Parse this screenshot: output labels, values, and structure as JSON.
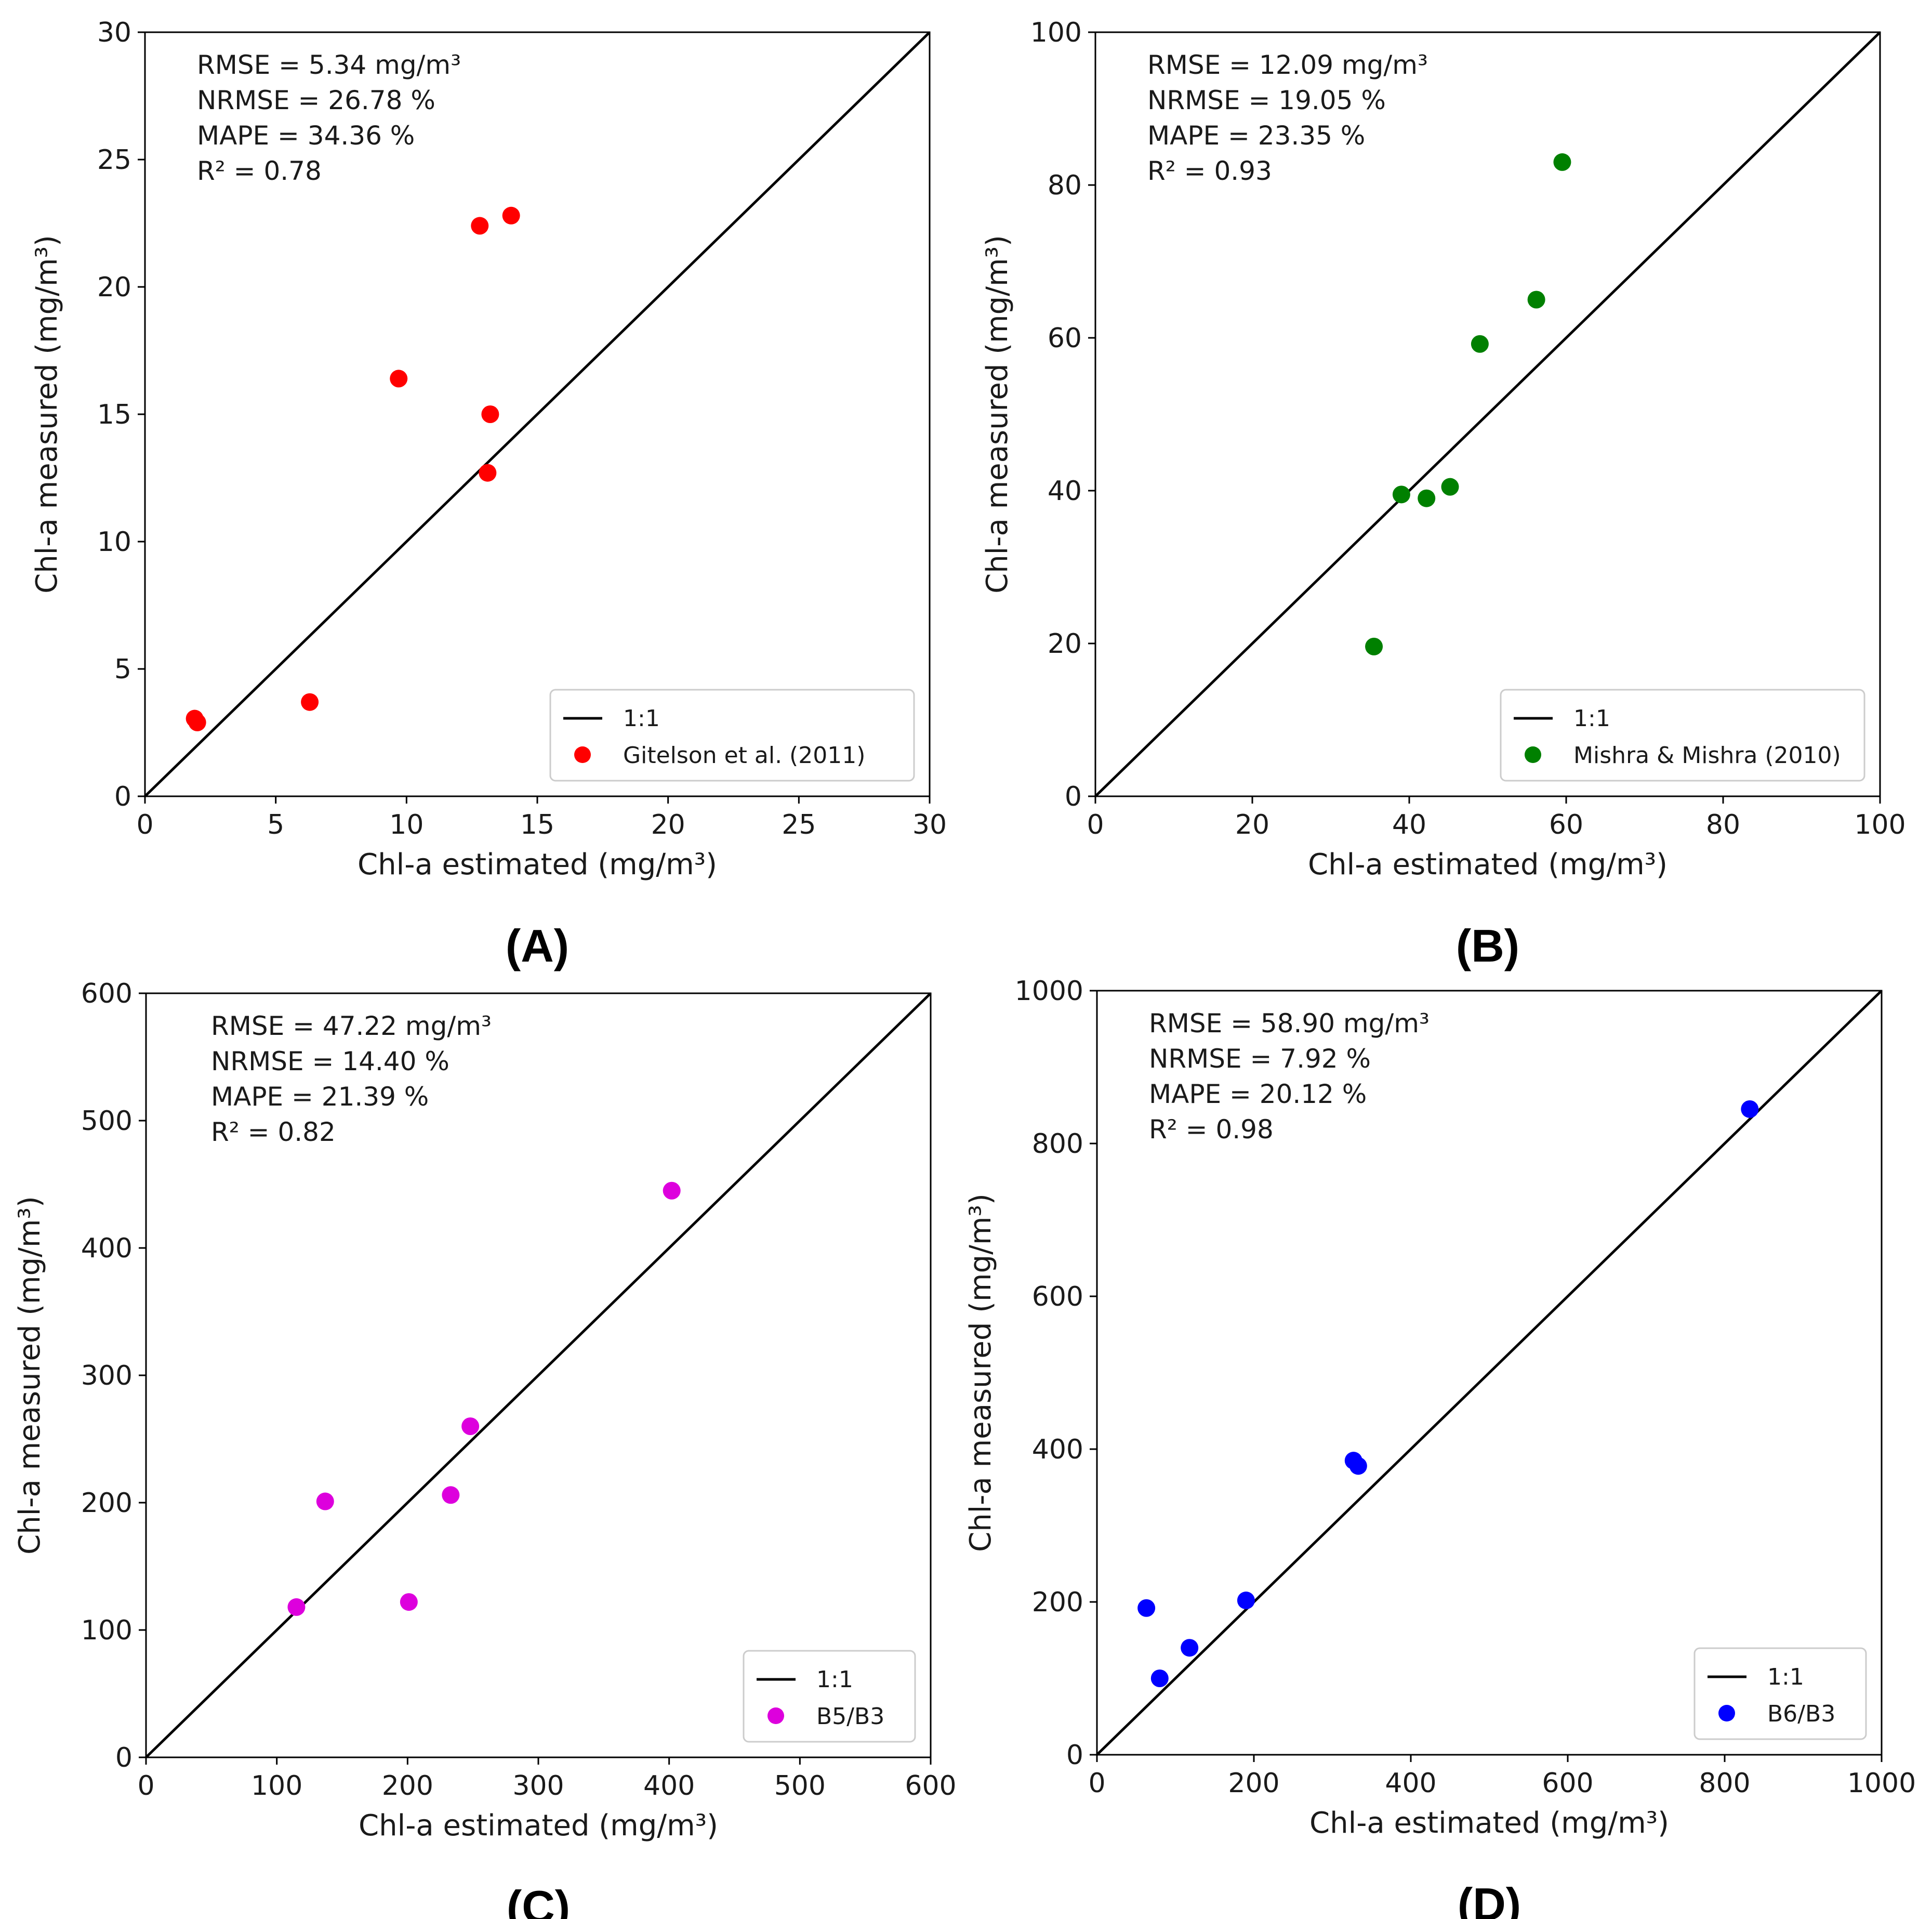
{
  "chart_data": [
    {
      "type": "scatter",
      "panel_label": "(A)",
      "xlabel": "Chl-a estimated (mg/m³)",
      "ylabel": "Chl-a measured (mg/m³)",
      "xlim": [
        0,
        30
      ],
      "ylim": [
        0,
        30
      ],
      "xticks": [
        "0",
        "5",
        "10",
        "15",
        "20",
        "25",
        "30"
      ],
      "yticks": [
        "0",
        "5",
        "10",
        "15",
        "20",
        "25",
        "30"
      ],
      "stats": [
        "RMSE = 5.34 mg/m³",
        "NRMSE = 26.78 %",
        "MAPE = 34.36 %",
        "R² = 0.78"
      ],
      "legend": {
        "line_label": "1:1",
        "series_label": "Gitelson et al. (2011)",
        "placement": "lower-right"
      },
      "color": "#ff0000",
      "points": [
        {
          "x": 1.9,
          "y": 3.05
        },
        {
          "x": 2.0,
          "y": 2.9
        },
        {
          "x": 6.3,
          "y": 3.7
        },
        {
          "x": 9.7,
          "y": 16.4
        },
        {
          "x": 12.8,
          "y": 22.4
        },
        {
          "x": 14.0,
          "y": 22.8
        },
        {
          "x": 13.2,
          "y": 15.0
        },
        {
          "x": 13.1,
          "y": 12.7
        }
      ]
    },
    {
      "type": "scatter",
      "panel_label": "(B)",
      "xlabel": "Chl-a estimated (mg/m³)",
      "ylabel": "Chl-a measured (mg/m³)",
      "xlim": [
        0,
        100
      ],
      "ylim": [
        0,
        100
      ],
      "xticks": [
        "0",
        "20",
        "40",
        "60",
        "80",
        "100"
      ],
      "yticks": [
        "0",
        "20",
        "40",
        "60",
        "80",
        "100"
      ],
      "stats": [
        "RMSE = 12.09 mg/m³",
        "NRMSE = 19.05 %",
        "MAPE = 23.35 %",
        "R² = 0.93"
      ],
      "legend": {
        "line_label": "1:1",
        "series_label": "Mishra & Mishra (2010)",
        "placement": "lower-right"
      },
      "color": "#008000",
      "points": [
        {
          "x": 35.5,
          "y": 19.6
        },
        {
          "x": 39.0,
          "y": 39.5
        },
        {
          "x": 42.2,
          "y": 39.0
        },
        {
          "x": 45.2,
          "y": 40.5
        },
        {
          "x": 49.0,
          "y": 59.2
        },
        {
          "x": 56.2,
          "y": 65.0
        },
        {
          "x": 59.5,
          "y": 83.0
        }
      ]
    },
    {
      "type": "scatter",
      "panel_label": "(C)",
      "xlabel": "Chl-a estimated (mg/m³)",
      "ylabel": "Chl-a measured (mg/m³)",
      "xlim": [
        0,
        600
      ],
      "ylim": [
        0,
        600
      ],
      "xticks": [
        "0",
        "100",
        "200",
        "300",
        "400",
        "500",
        "600"
      ],
      "yticks": [
        "0",
        "100",
        "200",
        "300",
        "400",
        "500",
        "600"
      ],
      "stats": [
        "RMSE = 47.22 mg/m³",
        "NRMSE = 14.40 %",
        "MAPE = 21.39 %",
        "R² = 0.82"
      ],
      "legend": {
        "line_label": "1:1",
        "series_label": "B5/B3",
        "placement": "lower-right"
      },
      "color": "#dd00dd",
      "points": [
        {
          "x": 115,
          "y": 118
        },
        {
          "x": 137,
          "y": 201
        },
        {
          "x": 201,
          "y": 122
        },
        {
          "x": 233,
          "y": 206
        },
        {
          "x": 248,
          "y": 260
        },
        {
          "x": 402,
          "y": 445
        }
      ]
    },
    {
      "type": "scatter",
      "panel_label": "(D)",
      "xlabel": "Chl-a estimated (mg/m³)",
      "ylabel": "Chl-a measured (mg/m³)",
      "xlim": [
        0,
        1000
      ],
      "ylim": [
        0,
        1000
      ],
      "xticks": [
        "0",
        "200",
        "400",
        "600",
        "800",
        "1000"
      ],
      "yticks": [
        "0",
        "200",
        "400",
        "600",
        "800",
        "1000"
      ],
      "stats": [
        "RMSE = 58.90 mg/m³",
        "NRMSE = 7.92 %",
        "MAPE = 20.12 %",
        "R² = 0.98"
      ],
      "legend": {
        "line_label": "1:1",
        "series_label": "B6/B3",
        "placement": "lower-right"
      },
      "color": "#0000ff",
      "points": [
        {
          "x": 63,
          "y": 192
        },
        {
          "x": 80,
          "y": 100
        },
        {
          "x": 118,
          "y": 140
        },
        {
          "x": 190,
          "y": 202
        },
        {
          "x": 327,
          "y": 385
        },
        {
          "x": 333,
          "y": 378
        },
        {
          "x": 832,
          "y": 845
        }
      ]
    }
  ]
}
